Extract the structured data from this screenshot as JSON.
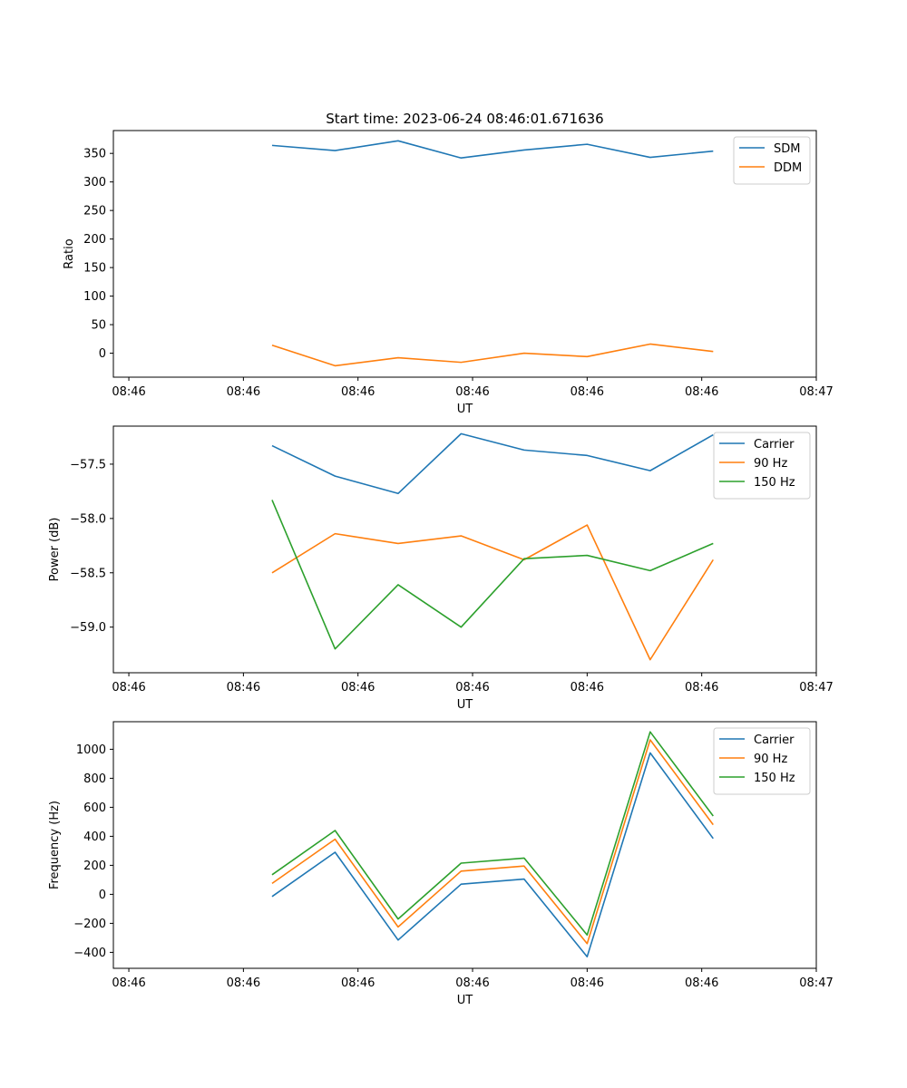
{
  "figure": {
    "title": "Start time: 2023-06-24 08:46:01.671636"
  },
  "chart_data": [
    {
      "type": "line",
      "title": "Start time: 2023-06-24 08:46:01.671636",
      "xlabel": "UT",
      "ylabel": "Ratio",
      "x": [
        "08:46:02.2",
        "08:46:03.3",
        "08:46:04.4",
        "08:46:05.5",
        "08:46:06.6",
        "08:46:07.7",
        "08:46:08.8",
        "08:46:09.9"
      ],
      "xticks": [
        "08:46",
        "08:46",
        "08:46",
        "08:46",
        "08:46",
        "08:46",
        "08:47"
      ],
      "yticks": [
        "0",
        "50",
        "100",
        "150",
        "200",
        "250",
        "300",
        "350"
      ],
      "ylim": [
        -42,
        390
      ],
      "legend_position": "top-right",
      "grid": false,
      "series": [
        {
          "name": "SDM",
          "color": "#1f77b4",
          "values": [
            364,
            355,
            372,
            342,
            356,
            366,
            343,
            354
          ]
        },
        {
          "name": "DDM",
          "color": "#ff7f0e",
          "values": [
            14,
            -22,
            -8,
            -16,
            0,
            -6,
            16,
            3
          ]
        }
      ]
    },
    {
      "type": "line",
      "xlabel": "UT",
      "ylabel": "Power (dB)",
      "x": [
        "08:46:02.2",
        "08:46:03.3",
        "08:46:04.4",
        "08:46:05.5",
        "08:46:06.6",
        "08:46:07.7",
        "08:46:08.8",
        "08:46:09.9"
      ],
      "xticks": [
        "08:46",
        "08:46",
        "08:46",
        "08:46",
        "08:46",
        "08:46",
        "08:47"
      ],
      "yticks": [
        "−59.0",
        "−58.5",
        "−58.0",
        "−57.5"
      ],
      "ylim": [
        -59.42,
        -57.15
      ],
      "legend_position": "top-right",
      "grid": false,
      "series": [
        {
          "name": "Carrier",
          "color": "#1f77b4",
          "values": [
            -57.33,
            -57.61,
            -57.77,
            -57.22,
            -57.37,
            -57.42,
            -57.56,
            -57.23
          ]
        },
        {
          "name": "90 Hz",
          "color": "#ff7f0e",
          "values": [
            -58.5,
            -58.14,
            -58.23,
            -58.16,
            -58.38,
            -58.06,
            -59.3,
            -58.38
          ]
        },
        {
          "name": "150 Hz",
          "color": "#2ca02c",
          "values": [
            -57.83,
            -59.2,
            -58.61,
            -59.0,
            -58.37,
            -58.34,
            -58.48,
            -58.23
          ]
        }
      ]
    },
    {
      "type": "line",
      "xlabel": "UT",
      "ylabel": "Frequency (Hz)",
      "x": [
        "08:46:02.2",
        "08:46:03.3",
        "08:46:04.4",
        "08:46:05.5",
        "08:46:06.6",
        "08:46:07.7",
        "08:46:08.8",
        "08:46:09.9"
      ],
      "xticks": [
        "08:46",
        "08:46",
        "08:46",
        "08:46",
        "08:46",
        "08:46",
        "08:47"
      ],
      "yticks": [
        "−400",
        "−200",
        "0",
        "200",
        "400",
        "600",
        "800",
        "1000"
      ],
      "ylim": [
        -510,
        1190
      ],
      "legend_position": "top-right",
      "grid": false,
      "series": [
        {
          "name": "Carrier",
          "color": "#1f77b4",
          "values": [
            -15,
            290,
            -315,
            70,
            105,
            -430,
            975,
            385
          ]
        },
        {
          "name": "90 Hz",
          "color": "#ff7f0e",
          "values": [
            75,
            380,
            -225,
            160,
            195,
            -340,
            1065,
            480
          ]
        },
        {
          "name": "150 Hz",
          "color": "#2ca02c",
          "values": [
            135,
            440,
            -170,
            215,
            250,
            -280,
            1120,
            540
          ]
        }
      ]
    }
  ]
}
